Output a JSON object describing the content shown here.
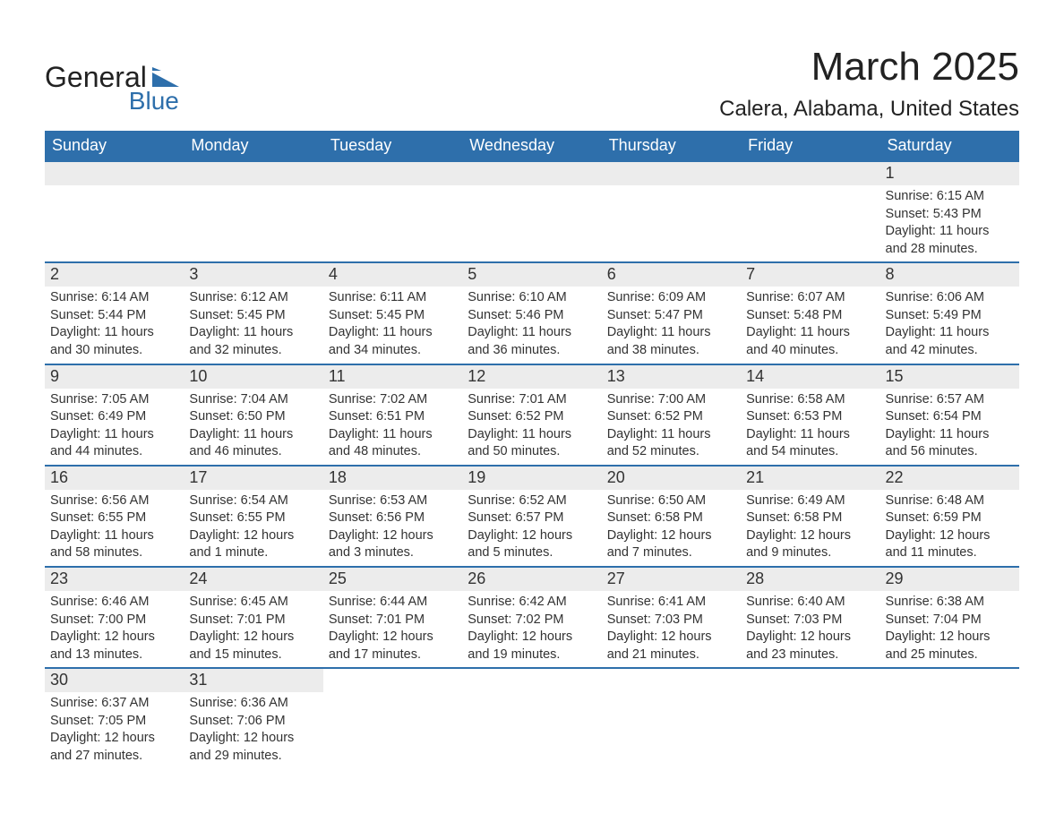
{
  "logo": {
    "text_general": "General",
    "text_blue": "Blue",
    "shape_color": "#2e6fab",
    "text_color_general": "#222222",
    "text_color_blue": "#2e6fab"
  },
  "header": {
    "month_title": "March 2025",
    "location": "Calera, Alabama, United States",
    "title_fontsize": 44,
    "location_fontsize": 24,
    "text_color": "#222222"
  },
  "calendar": {
    "header_bg": "#2e6fab",
    "header_text_color": "#ffffff",
    "row_border_color": "#2e6fab",
    "daynum_bg": "#ececec",
    "body_text_color": "#333333",
    "day_labels": [
      "Sunday",
      "Monday",
      "Tuesday",
      "Wednesday",
      "Thursday",
      "Friday",
      "Saturday"
    ],
    "weeks": [
      [
        {
          "day": "",
          "sunrise": "",
          "sunset": "",
          "daylight": ""
        },
        {
          "day": "",
          "sunrise": "",
          "sunset": "",
          "daylight": ""
        },
        {
          "day": "",
          "sunrise": "",
          "sunset": "",
          "daylight": ""
        },
        {
          "day": "",
          "sunrise": "",
          "sunset": "",
          "daylight": ""
        },
        {
          "day": "",
          "sunrise": "",
          "sunset": "",
          "daylight": ""
        },
        {
          "day": "",
          "sunrise": "",
          "sunset": "",
          "daylight": ""
        },
        {
          "day": "1",
          "sunrise": "Sunrise: 6:15 AM",
          "sunset": "Sunset: 5:43 PM",
          "daylight": "Daylight: 11 hours and 28 minutes."
        }
      ],
      [
        {
          "day": "2",
          "sunrise": "Sunrise: 6:14 AM",
          "sunset": "Sunset: 5:44 PM",
          "daylight": "Daylight: 11 hours and 30 minutes."
        },
        {
          "day": "3",
          "sunrise": "Sunrise: 6:12 AM",
          "sunset": "Sunset: 5:45 PM",
          "daylight": "Daylight: 11 hours and 32 minutes."
        },
        {
          "day": "4",
          "sunrise": "Sunrise: 6:11 AM",
          "sunset": "Sunset: 5:45 PM",
          "daylight": "Daylight: 11 hours and 34 minutes."
        },
        {
          "day": "5",
          "sunrise": "Sunrise: 6:10 AM",
          "sunset": "Sunset: 5:46 PM",
          "daylight": "Daylight: 11 hours and 36 minutes."
        },
        {
          "day": "6",
          "sunrise": "Sunrise: 6:09 AM",
          "sunset": "Sunset: 5:47 PM",
          "daylight": "Daylight: 11 hours and 38 minutes."
        },
        {
          "day": "7",
          "sunrise": "Sunrise: 6:07 AM",
          "sunset": "Sunset: 5:48 PM",
          "daylight": "Daylight: 11 hours and 40 minutes."
        },
        {
          "day": "8",
          "sunrise": "Sunrise: 6:06 AM",
          "sunset": "Sunset: 5:49 PM",
          "daylight": "Daylight: 11 hours and 42 minutes."
        }
      ],
      [
        {
          "day": "9",
          "sunrise": "Sunrise: 7:05 AM",
          "sunset": "Sunset: 6:49 PM",
          "daylight": "Daylight: 11 hours and 44 minutes."
        },
        {
          "day": "10",
          "sunrise": "Sunrise: 7:04 AM",
          "sunset": "Sunset: 6:50 PM",
          "daylight": "Daylight: 11 hours and 46 minutes."
        },
        {
          "day": "11",
          "sunrise": "Sunrise: 7:02 AM",
          "sunset": "Sunset: 6:51 PM",
          "daylight": "Daylight: 11 hours and 48 minutes."
        },
        {
          "day": "12",
          "sunrise": "Sunrise: 7:01 AM",
          "sunset": "Sunset: 6:52 PM",
          "daylight": "Daylight: 11 hours and 50 minutes."
        },
        {
          "day": "13",
          "sunrise": "Sunrise: 7:00 AM",
          "sunset": "Sunset: 6:52 PM",
          "daylight": "Daylight: 11 hours and 52 minutes."
        },
        {
          "day": "14",
          "sunrise": "Sunrise: 6:58 AM",
          "sunset": "Sunset: 6:53 PM",
          "daylight": "Daylight: 11 hours and 54 minutes."
        },
        {
          "day": "15",
          "sunrise": "Sunrise: 6:57 AM",
          "sunset": "Sunset: 6:54 PM",
          "daylight": "Daylight: 11 hours and 56 minutes."
        }
      ],
      [
        {
          "day": "16",
          "sunrise": "Sunrise: 6:56 AM",
          "sunset": "Sunset: 6:55 PM",
          "daylight": "Daylight: 11 hours and 58 minutes."
        },
        {
          "day": "17",
          "sunrise": "Sunrise: 6:54 AM",
          "sunset": "Sunset: 6:55 PM",
          "daylight": "Daylight: 12 hours and 1 minute."
        },
        {
          "day": "18",
          "sunrise": "Sunrise: 6:53 AM",
          "sunset": "Sunset: 6:56 PM",
          "daylight": "Daylight: 12 hours and 3 minutes."
        },
        {
          "day": "19",
          "sunrise": "Sunrise: 6:52 AM",
          "sunset": "Sunset: 6:57 PM",
          "daylight": "Daylight: 12 hours and 5 minutes."
        },
        {
          "day": "20",
          "sunrise": "Sunrise: 6:50 AM",
          "sunset": "Sunset: 6:58 PM",
          "daylight": "Daylight: 12 hours and 7 minutes."
        },
        {
          "day": "21",
          "sunrise": "Sunrise: 6:49 AM",
          "sunset": "Sunset: 6:58 PM",
          "daylight": "Daylight: 12 hours and 9 minutes."
        },
        {
          "day": "22",
          "sunrise": "Sunrise: 6:48 AM",
          "sunset": "Sunset: 6:59 PM",
          "daylight": "Daylight: 12 hours and 11 minutes."
        }
      ],
      [
        {
          "day": "23",
          "sunrise": "Sunrise: 6:46 AM",
          "sunset": "Sunset: 7:00 PM",
          "daylight": "Daylight: 12 hours and 13 minutes."
        },
        {
          "day": "24",
          "sunrise": "Sunrise: 6:45 AM",
          "sunset": "Sunset: 7:01 PM",
          "daylight": "Daylight: 12 hours and 15 minutes."
        },
        {
          "day": "25",
          "sunrise": "Sunrise: 6:44 AM",
          "sunset": "Sunset: 7:01 PM",
          "daylight": "Daylight: 12 hours and 17 minutes."
        },
        {
          "day": "26",
          "sunrise": "Sunrise: 6:42 AM",
          "sunset": "Sunset: 7:02 PM",
          "daylight": "Daylight: 12 hours and 19 minutes."
        },
        {
          "day": "27",
          "sunrise": "Sunrise: 6:41 AM",
          "sunset": "Sunset: 7:03 PM",
          "daylight": "Daylight: 12 hours and 21 minutes."
        },
        {
          "day": "28",
          "sunrise": "Sunrise: 6:40 AM",
          "sunset": "Sunset: 7:03 PM",
          "daylight": "Daylight: 12 hours and 23 minutes."
        },
        {
          "day": "29",
          "sunrise": "Sunrise: 6:38 AM",
          "sunset": "Sunset: 7:04 PM",
          "daylight": "Daylight: 12 hours and 25 minutes."
        }
      ],
      [
        {
          "day": "30",
          "sunrise": "Sunrise: 6:37 AM",
          "sunset": "Sunset: 7:05 PM",
          "daylight": "Daylight: 12 hours and 27 minutes."
        },
        {
          "day": "31",
          "sunrise": "Sunrise: 6:36 AM",
          "sunset": "Sunset: 7:06 PM",
          "daylight": "Daylight: 12 hours and 29 minutes."
        },
        {
          "day": "",
          "sunrise": "",
          "sunset": "",
          "daylight": ""
        },
        {
          "day": "",
          "sunrise": "",
          "sunset": "",
          "daylight": ""
        },
        {
          "day": "",
          "sunrise": "",
          "sunset": "",
          "daylight": ""
        },
        {
          "day": "",
          "sunrise": "",
          "sunset": "",
          "daylight": ""
        },
        {
          "day": "",
          "sunrise": "",
          "sunset": "",
          "daylight": ""
        }
      ]
    ]
  }
}
